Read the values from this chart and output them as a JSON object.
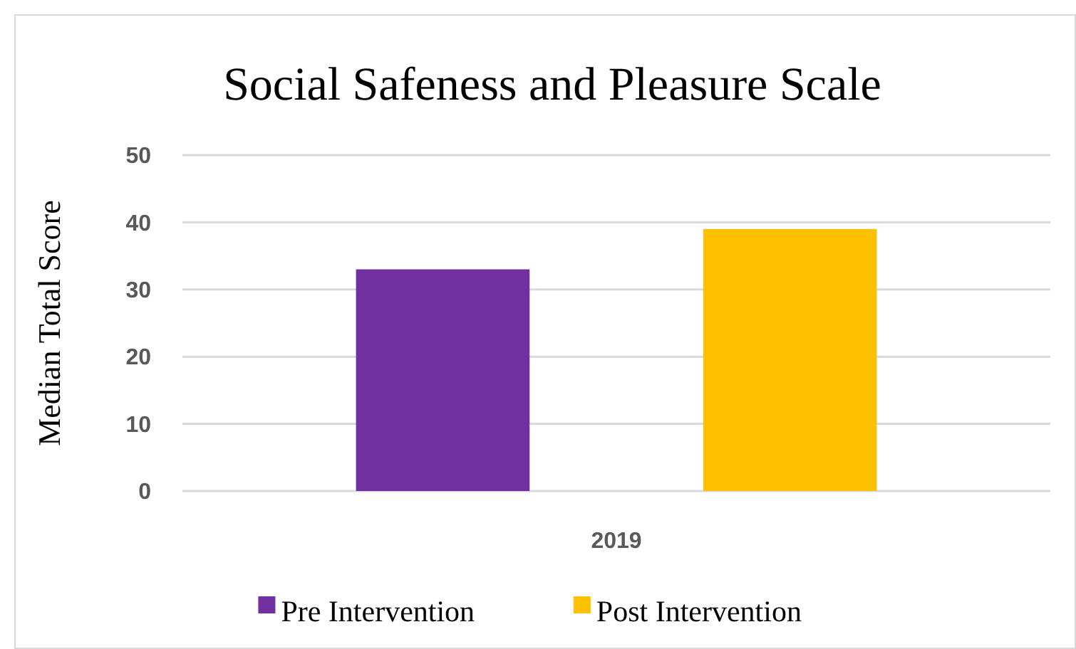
{
  "chart_data": {
    "type": "bar",
    "title": "Social Safeness and Pleasure Scale",
    "ylabel": "Median Total Score",
    "categories": [
      "2019"
    ],
    "series": [
      {
        "name": "Pre Intervention",
        "color": "#7030a0",
        "values": [
          33
        ]
      },
      {
        "name": "Post Intervention",
        "color": "#ffc000",
        "values": [
          39
        ]
      }
    ],
    "ylim": [
      0,
      50
    ],
    "yticks": [
      0,
      10,
      20,
      30,
      40,
      50
    ],
    "grid": "y",
    "legend": "bottom"
  }
}
